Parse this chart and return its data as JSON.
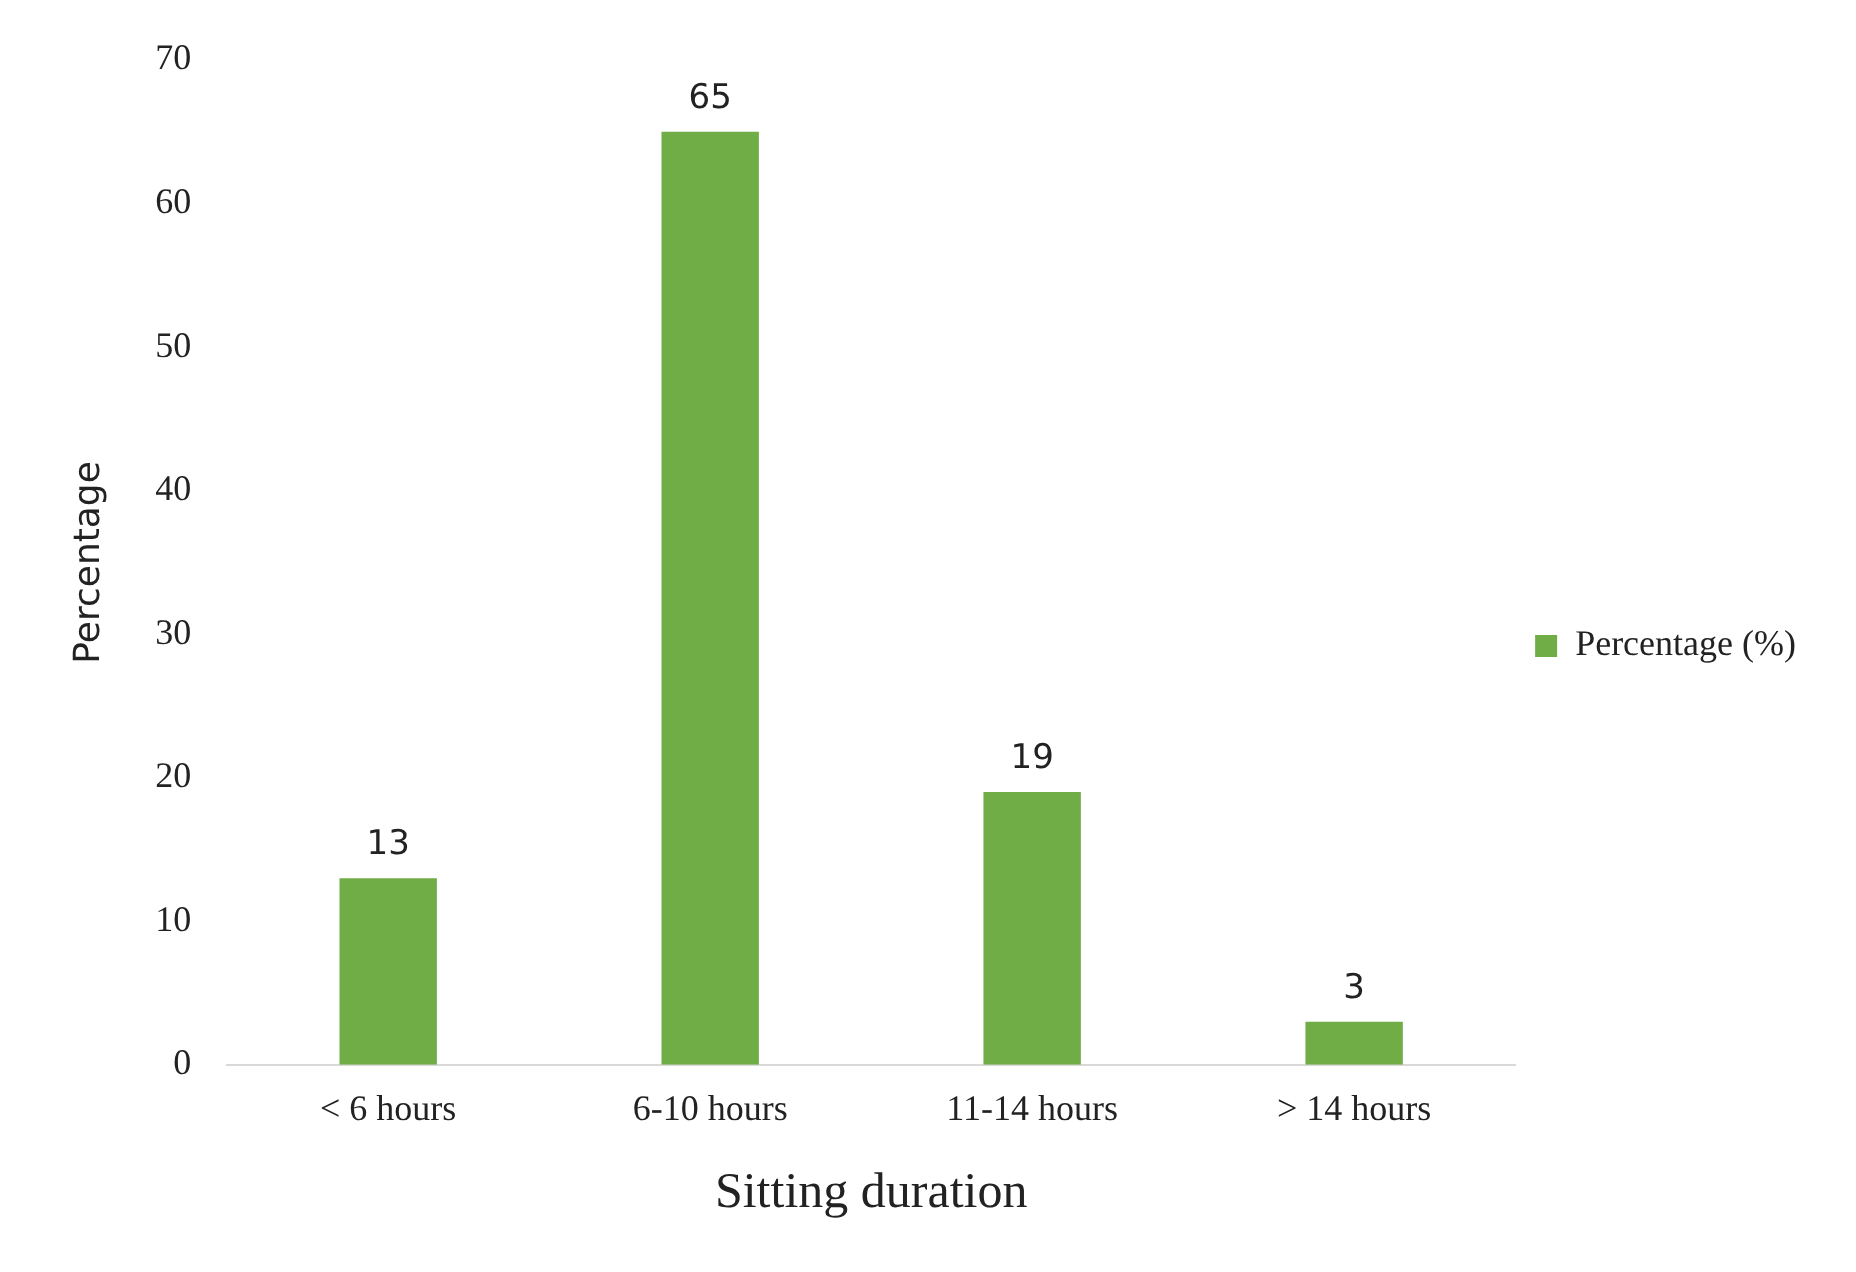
{
  "chart_data": {
    "type": "bar",
    "xlabel": "Sitting duration",
    "ylabel": "Percentage",
    "categories": [
      "< 6 hours",
      "6-10 hours",
      "11-14 hours",
      "> 14 hours"
    ],
    "series": [
      {
        "name": "Percentage (%)",
        "color": "#70ad47",
        "values": [
          13,
          65,
          19,
          3
        ]
      }
    ],
    "ylim": [
      0,
      70
    ],
    "yticks": [
      0,
      10,
      20,
      30,
      40,
      50,
      60,
      70
    ],
    "grid": false,
    "legend": "right",
    "data_labels": true
  }
}
